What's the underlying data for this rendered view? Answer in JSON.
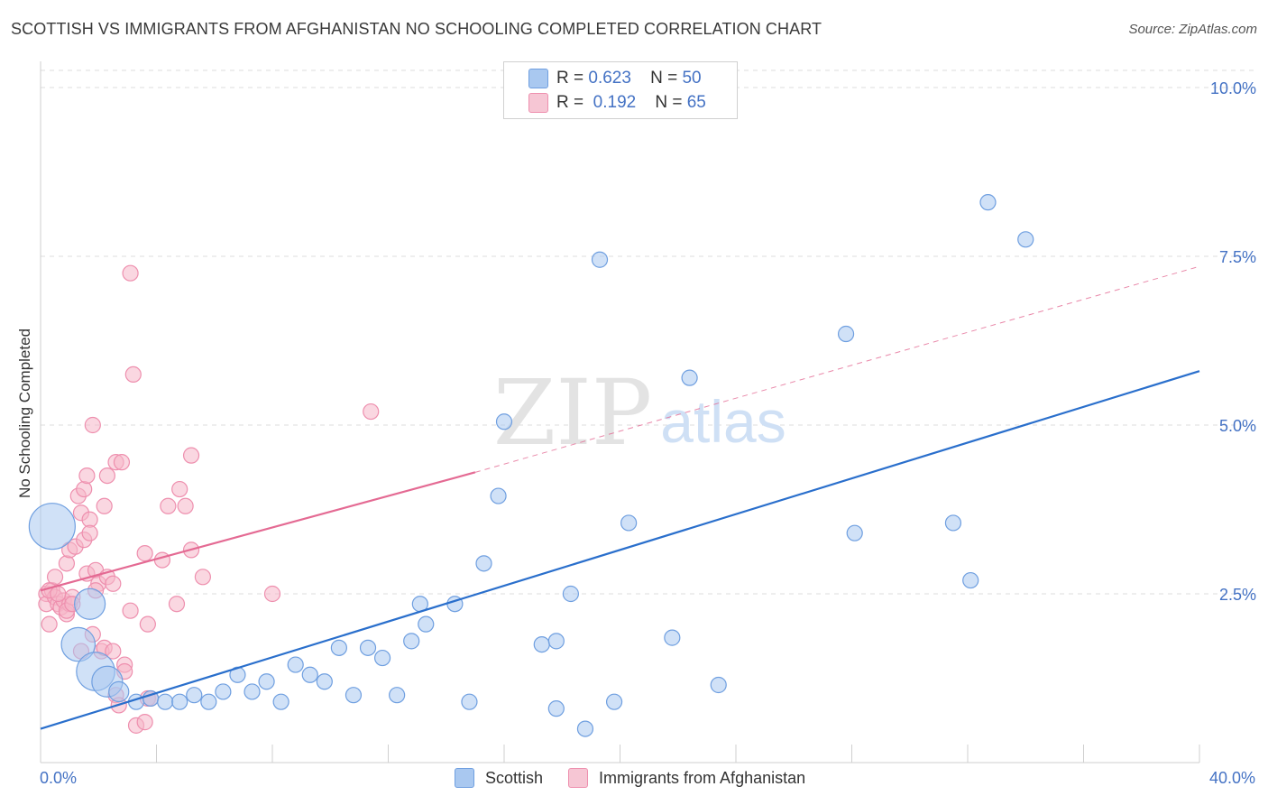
{
  "header": {
    "title": "SCOTTISH VS IMMIGRANTS FROM AFGHANISTAN NO SCHOOLING COMPLETED CORRELATION CHART",
    "source": "Source: ZipAtlas.com"
  },
  "watermark": {
    "zip": "ZIP",
    "atlas": "atlas"
  },
  "stats": {
    "scottish": {
      "r_label": "R =",
      "r": "0.623",
      "n_label": "N =",
      "n": "50"
    },
    "afghan": {
      "r_label": "R =",
      "r": "0.192",
      "n_label": "N =",
      "n": "65"
    }
  },
  "colors": {
    "scottish_fill": "#a9c8f0",
    "scottish_stroke": "#6f9fe0",
    "scottish_line": "#2a6fcc",
    "afghan_fill": "#f6b7c9",
    "afghan_stroke": "#ee8fae",
    "afghan_line": "#e46a93",
    "tick_text": "#4472c4",
    "grid": "#dcdcdc"
  },
  "chart_data": {
    "type": "scatter",
    "title": "SCOTTISH VS IMMIGRANTS FROM AFGHANISTAN NO SCHOOLING COMPLETED CORRELATION CHART",
    "xlabel": "",
    "ylabel": "No Schooling Completed",
    "xlim": [
      0,
      40
    ],
    "ylim": [
      0,
      10.5
    ],
    "x_tick_labels": {
      "min": "0.0%",
      "max": "40.0%"
    },
    "y_ticks": [
      {
        "value": 2.5,
        "label": "2.5%"
      },
      {
        "value": 5.0,
        "label": "5.0%"
      },
      {
        "value": 7.5,
        "label": "7.5%"
      },
      {
        "value": 10.0,
        "label": "10.0%"
      }
    ],
    "grid": true,
    "legend": "bottom-center",
    "series": [
      {
        "name": "Scottish",
        "color": "#6f9fe0",
        "r": 0.623,
        "n": 50,
        "trend": {
          "x": [
            0,
            40
          ],
          "y": [
            0.5,
            5.8
          ],
          "style": "solid"
        },
        "points": [
          [
            0.4,
            3.5,
            3
          ],
          [
            1.7,
            2.35,
            2
          ],
          [
            1.3,
            1.75,
            2.2
          ],
          [
            1.9,
            1.35,
            2.5
          ],
          [
            2.3,
            1.2,
            2
          ],
          [
            2.7,
            1.05,
            1.3
          ],
          [
            3.3,
            0.9,
            1
          ],
          [
            3.8,
            0.95,
            1
          ],
          [
            4.3,
            0.9,
            1
          ],
          [
            4.8,
            0.9,
            1
          ],
          [
            5.3,
            1.0,
            1
          ],
          [
            5.8,
            0.9,
            1
          ],
          [
            6.3,
            1.05,
            1
          ],
          [
            6.8,
            1.3,
            1
          ],
          [
            7.3,
            1.05,
            1
          ],
          [
            7.8,
            1.2,
            1
          ],
          [
            8.3,
            0.9,
            1
          ],
          [
            8.8,
            1.45,
            1
          ],
          [
            9.3,
            1.3,
            1
          ],
          [
            9.8,
            1.2,
            1
          ],
          [
            10.3,
            1.7,
            1
          ],
          [
            10.8,
            1.0,
            1
          ],
          [
            11.3,
            1.7,
            1
          ],
          [
            11.8,
            1.55,
            1
          ],
          [
            12.3,
            1.0,
            1
          ],
          [
            12.8,
            1.8,
            1
          ],
          [
            13.1,
            2.35,
            1
          ],
          [
            13.3,
            2.05,
            1
          ],
          [
            14.3,
            2.35,
            1
          ],
          [
            14.8,
            0.9,
            1
          ],
          [
            15.3,
            2.95,
            1
          ],
          [
            15.8,
            3.95,
            1
          ],
          [
            16.0,
            5.05,
            1
          ],
          [
            17.3,
            1.75,
            1
          ],
          [
            17.8,
            0.8,
            1
          ],
          [
            17.8,
            1.8,
            1
          ],
          [
            18.3,
            2.5,
            1
          ],
          [
            18.8,
            0.5,
            1
          ],
          [
            19.3,
            7.45,
            1
          ],
          [
            19.8,
            0.9,
            1
          ],
          [
            20.3,
            3.55,
            1
          ],
          [
            21.8,
            1.85,
            1
          ],
          [
            22.4,
            5.7,
            1
          ],
          [
            23.4,
            1.15,
            1
          ],
          [
            27.8,
            6.35,
            1
          ],
          [
            28.1,
            3.4,
            1
          ],
          [
            31.5,
            3.55,
            1
          ],
          [
            32.1,
            2.7,
            1
          ],
          [
            32.7,
            8.3,
            1
          ],
          [
            34.0,
            7.75,
            1
          ]
        ]
      },
      {
        "name": "Immigrants from Afghanistan",
        "color": "#ee8fae",
        "r": 0.192,
        "n": 65,
        "trend": {
          "x": [
            0,
            15
          ],
          "y": [
            2.55,
            4.3
          ],
          "style": "solid",
          "extension": {
            "x": [
              15,
              40
            ],
            "y": [
              4.3,
              7.35
            ],
            "style": "dashed"
          }
        },
        "points": [
          [
            0.2,
            2.5,
            1
          ],
          [
            0.2,
            2.35,
            1
          ],
          [
            0.3,
            2.05,
            1
          ],
          [
            0.4,
            2.55,
            1
          ],
          [
            0.5,
            2.45,
            1
          ],
          [
            0.6,
            2.35,
            1
          ],
          [
            0.7,
            2.3,
            1
          ],
          [
            0.8,
            2.4,
            1
          ],
          [
            0.5,
            2.75,
            1
          ],
          [
            0.9,
            2.2,
            1
          ],
          [
            1.0,
            2.35,
            1
          ],
          [
            0.9,
            2.25,
            1
          ],
          [
            1.1,
            2.45,
            1
          ],
          [
            0.9,
            2.95,
            1
          ],
          [
            1.0,
            3.15,
            1
          ],
          [
            1.2,
            3.2,
            1
          ],
          [
            1.3,
            3.95,
            1
          ],
          [
            1.4,
            3.7,
            1
          ],
          [
            1.5,
            4.05,
            1
          ],
          [
            1.5,
            3.3,
            1
          ],
          [
            1.6,
            4.25,
            1
          ],
          [
            1.6,
            2.8,
            1
          ],
          [
            1.7,
            3.6,
            1
          ],
          [
            1.7,
            3.4,
            1
          ],
          [
            1.8,
            5.0,
            1
          ],
          [
            1.8,
            1.9,
            1
          ],
          [
            1.9,
            2.85,
            1
          ],
          [
            2.0,
            2.65,
            1
          ],
          [
            2.1,
            1.65,
            1
          ],
          [
            2.2,
            1.7,
            1
          ],
          [
            2.2,
            3.8,
            1
          ],
          [
            2.3,
            4.25,
            1
          ],
          [
            2.3,
            2.75,
            1
          ],
          [
            2.5,
            2.65,
            1
          ],
          [
            2.5,
            1.65,
            1
          ],
          [
            2.6,
            4.45,
            1
          ],
          [
            2.6,
            1.0,
            1
          ],
          [
            2.7,
            0.85,
            1
          ],
          [
            2.8,
            4.45,
            1
          ],
          [
            2.9,
            1.45,
            1
          ],
          [
            2.9,
            1.35,
            1
          ],
          [
            3.1,
            7.25,
            1
          ],
          [
            3.1,
            2.25,
            1
          ],
          [
            3.2,
            5.75,
            1
          ],
          [
            3.3,
            0.55,
            1
          ],
          [
            3.6,
            3.1,
            1
          ],
          [
            3.6,
            0.6,
            1
          ],
          [
            3.7,
            2.05,
            1
          ],
          [
            3.7,
            0.95,
            1
          ],
          [
            3.8,
            0.95,
            1
          ],
          [
            4.2,
            3.0,
            1
          ],
          [
            4.4,
            3.8,
            1
          ],
          [
            4.7,
            2.35,
            1
          ],
          [
            4.8,
            4.05,
            1
          ],
          [
            5.0,
            3.8,
            1
          ],
          [
            5.2,
            4.55,
            1
          ],
          [
            5.2,
            3.15,
            1
          ],
          [
            5.6,
            2.75,
            1
          ],
          [
            8.0,
            2.5,
            1
          ],
          [
            11.4,
            5.2,
            1
          ],
          [
            0.3,
            2.55,
            1
          ],
          [
            0.6,
            2.5,
            1
          ],
          [
            1.1,
            2.35,
            1
          ],
          [
            1.4,
            1.65,
            1
          ],
          [
            1.9,
            2.55,
            1
          ]
        ]
      }
    ]
  },
  "legend_bottom": {
    "scottish": "Scottish",
    "afghan": "Immigrants from Afghanistan"
  }
}
